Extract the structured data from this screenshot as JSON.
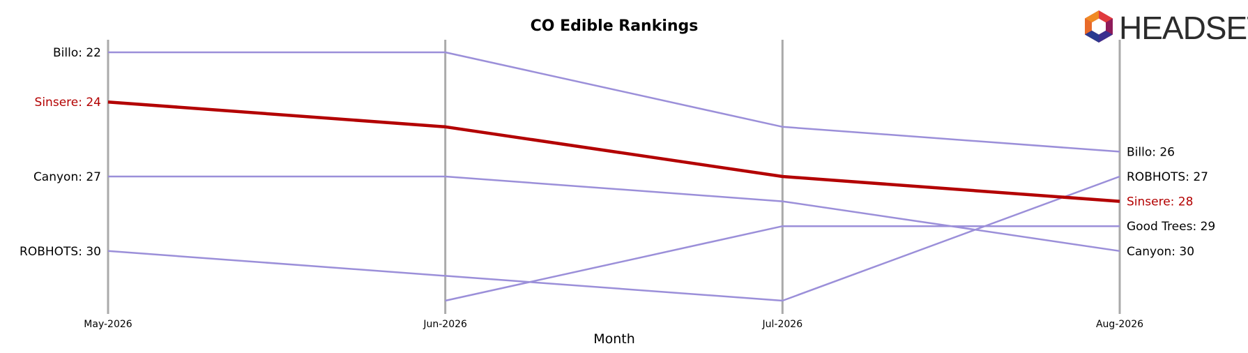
{
  "chart_data": {
    "type": "line",
    "title": "CO Edible Rankings",
    "xlabel": "Month",
    "ylabel": "",
    "x": [
      "May-2026",
      "Jun-2026",
      "Jul-2026",
      "Aug-2026"
    ],
    "y_inverted": true,
    "ylim": [
      21.5,
      32.5
    ],
    "grid": "vertical lines at each month",
    "legend": "none; series names printed as end labels at first and last month",
    "highlight_series": "Sinsere",
    "series": [
      {
        "name": "Billo",
        "values": [
          22,
          22,
          25,
          26
        ],
        "left_label": "Billo: 22",
        "right_label": "Billo: 26"
      },
      {
        "name": "Sinsere",
        "values": [
          24,
          25,
          27,
          28
        ],
        "left_label": "Sinsere: 24",
        "right_label": "Sinsere: 28"
      },
      {
        "name": "Canyon",
        "values": [
          27,
          27,
          28,
          30
        ],
        "left_label": "Canyon: 27",
        "right_label": "Canyon: 30"
      },
      {
        "name": "ROBHOTS",
        "values": [
          30,
          31,
          32,
          27
        ],
        "left_label": "ROBHOTS: 30",
        "right_label": "ROBHOTS: 27"
      },
      {
        "name": "Good Trees",
        "values": [
          null,
          32,
          29,
          29
        ],
        "left_label": "",
        "right_label": "Good Trees: 29"
      }
    ],
    "colors": {
      "highlight": "#b30000",
      "other": "#9b8fd9",
      "gridline": "#aaaaaa",
      "text": "#000000"
    }
  },
  "logo": {
    "text": "HEADSET",
    "icon": "headset-hexagon-logo-icon"
  }
}
